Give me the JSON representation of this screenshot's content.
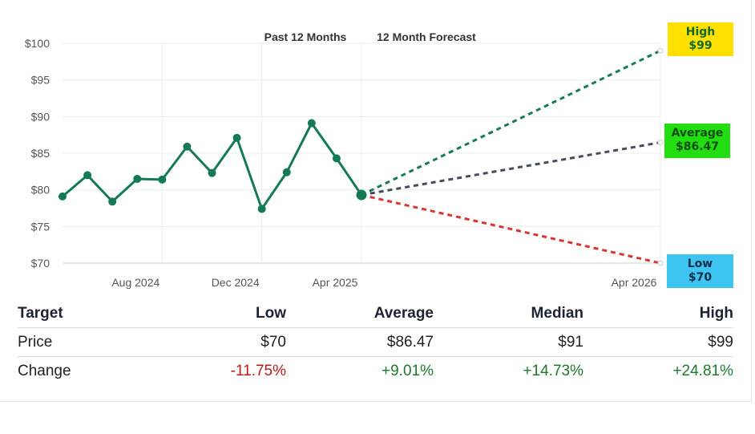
{
  "chart_data": {
    "type": "line",
    "period_labels": [
      "Past 12 Months",
      "12 Month Forecast"
    ],
    "y_ticks": [
      "$100",
      "$95",
      "$90",
      "$85",
      "$80",
      "$75",
      "$70"
    ],
    "y_tick_values": [
      100,
      95,
      90,
      85,
      80,
      75,
      70
    ],
    "ylim": [
      70,
      100
    ],
    "x_tick_labels": [
      "Aug 2024",
      "Dec 2024",
      "Apr 2025",
      "Apr 2026"
    ],
    "x_tick_months": [
      2,
      6,
      10,
      22
    ],
    "x_domain": [
      -2,
      22
    ],
    "series": [
      {
        "x": [
          -2,
          -1,
          0,
          1,
          2,
          3,
          4,
          5,
          6,
          7,
          8,
          9,
          10
        ],
        "values": [
          79.1,
          82.0,
          78.4,
          81.5,
          81.4,
          85.9,
          82.3,
          87.1,
          77.4,
          82.4,
          89.1,
          84.3,
          79.3
        ],
        "color": "#147a55"
      }
    ],
    "forecast": {
      "start_month": 10,
      "start_value": 79.3,
      "end_month": 22,
      "lines": [
        {
          "label": "High",
          "value": 99,
          "value_label": "$99",
          "color": "#1a7a50",
          "badge_bg": "#ffe000",
          "badge_fg": "#0e6a1e"
        },
        {
          "label": "Average",
          "value": 86.47,
          "value_label": "$86.47",
          "color": "#454d5c",
          "badge_bg": "#22dd10",
          "badge_fg": "#114d14"
        },
        {
          "label": "Low",
          "value": 70,
          "value_label": "$70",
          "color": "#dd3333",
          "badge_bg": "#3ec4f0",
          "badge_fg": "#0d2f4a"
        }
      ]
    },
    "grid": true
  },
  "table": {
    "headers": [
      "Target",
      "Low",
      "Average",
      "Median",
      "High"
    ],
    "rows": [
      {
        "label": "Price",
        "cells": [
          "$70",
          "$86.47",
          "$91",
          "$99"
        ]
      },
      {
        "label": "Change",
        "cells": [
          "-11.75%",
          "+9.01%",
          "+14.73%",
          "+24.81%"
        ],
        "signs": [
          "neg",
          "pos",
          "pos",
          "pos"
        ]
      }
    ]
  }
}
